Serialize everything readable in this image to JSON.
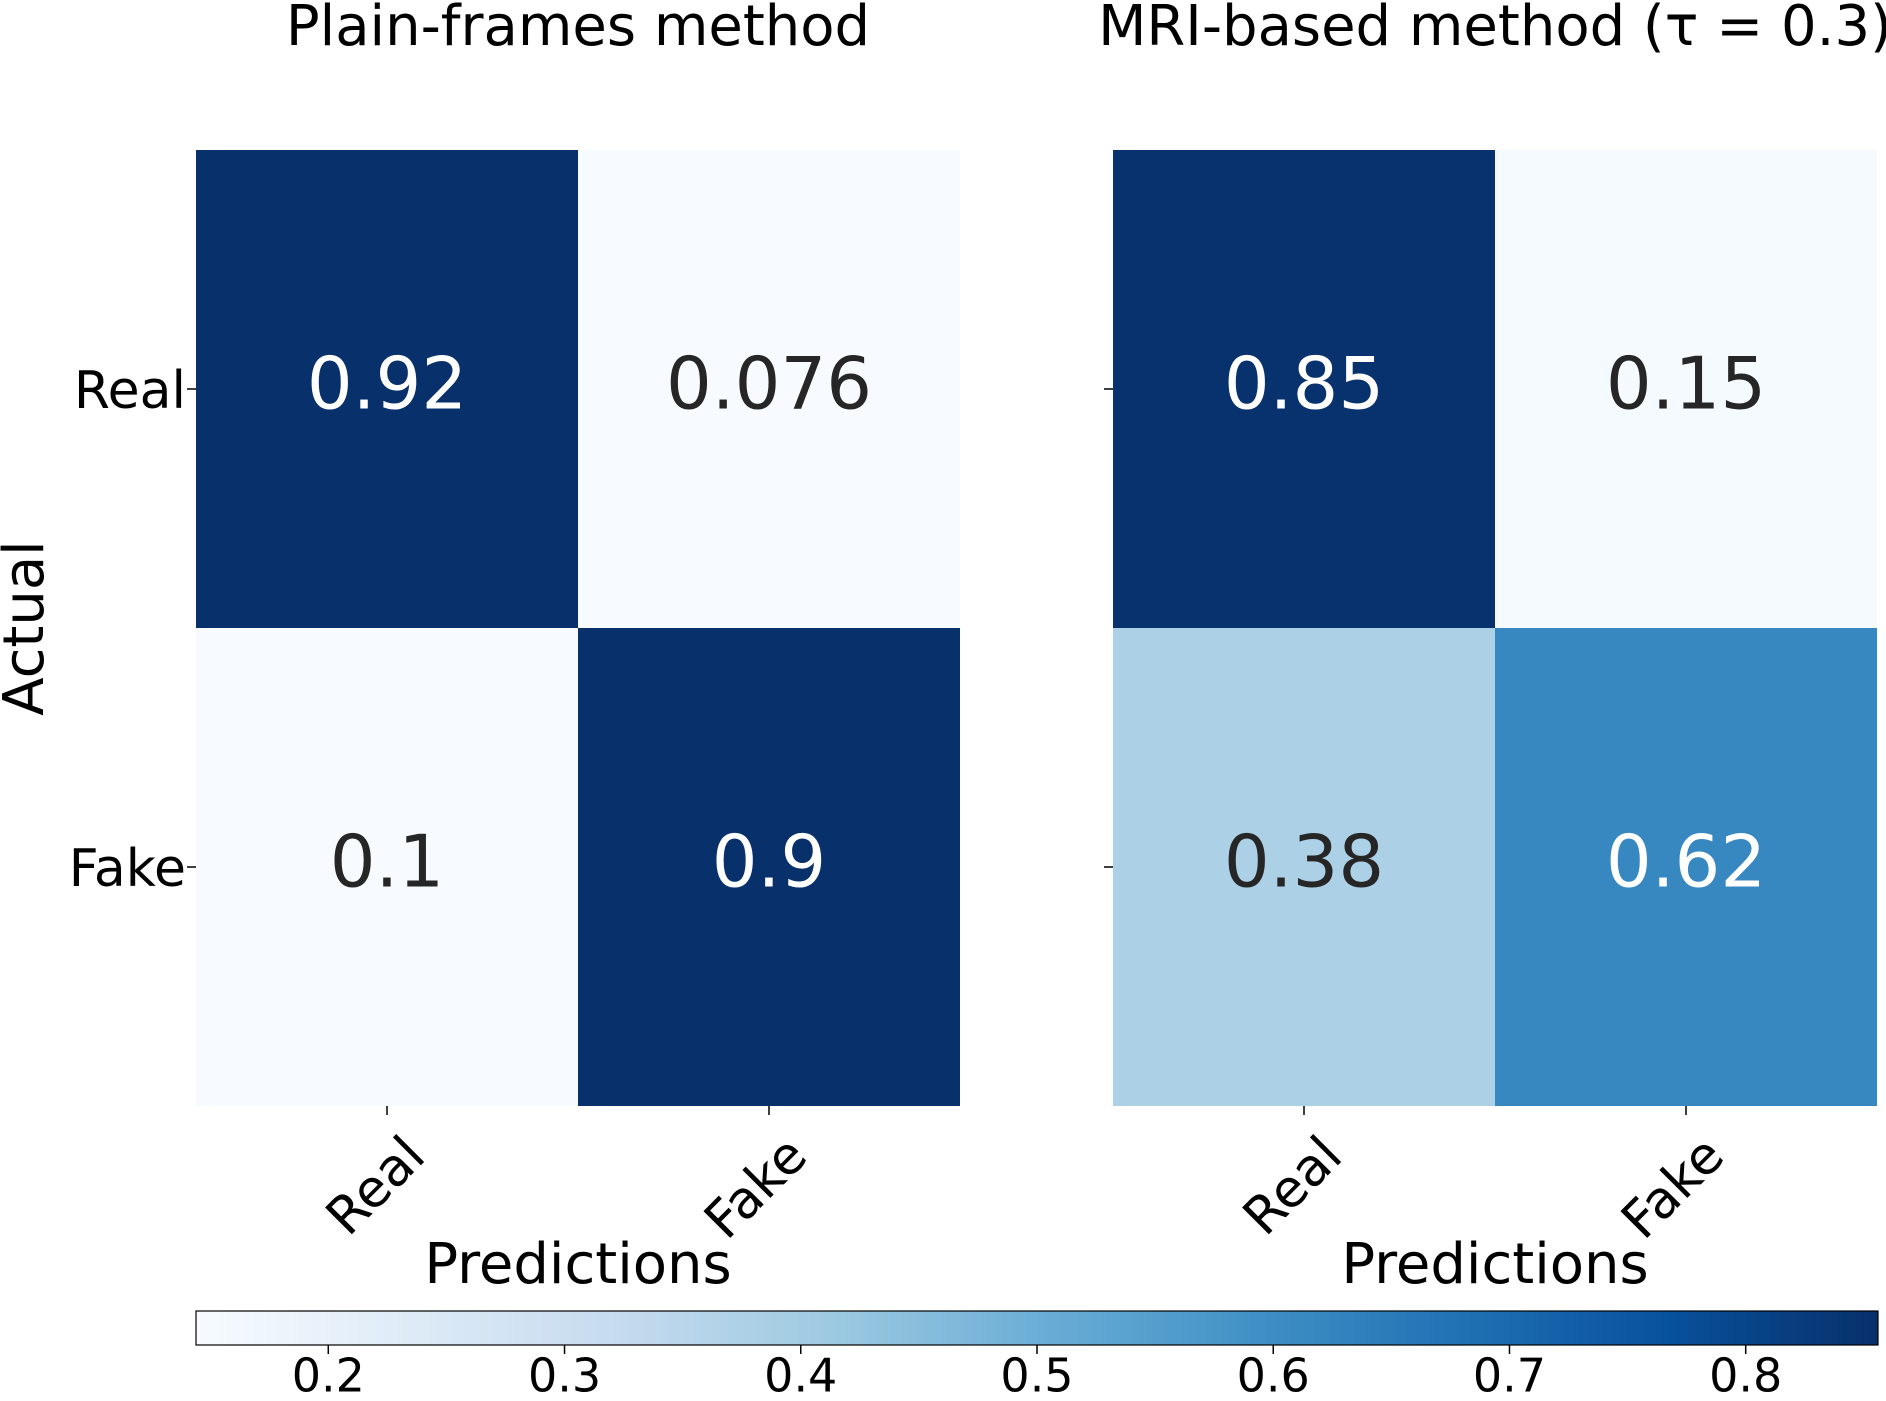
{
  "chart_data": {
    "type": "heatmap",
    "panels": [
      {
        "title": "Plain-frames method",
        "xlabel": "Predictions",
        "ylabel": "Actual",
        "x_categories": [
          "Real",
          "Fake"
        ],
        "y_categories": [
          "Real",
          "Fake"
        ],
        "values": [
          [
            0.92,
            0.076
          ],
          [
            0.1,
            0.9
          ]
        ],
        "cell_labels": [
          [
            "0.92",
            "0.076"
          ],
          [
            "0.1",
            "0.9"
          ]
        ]
      },
      {
        "title": "MRI-based method (τ = 0.3)",
        "xlabel": "Predictions",
        "ylabel": "",
        "x_categories": [
          "Real",
          "Fake"
        ],
        "y_categories": [
          "",
          ""
        ],
        "values": [
          [
            0.85,
            0.15
          ],
          [
            0.38,
            0.62
          ]
        ],
        "cell_labels": [
          [
            "0.85",
            "0.15"
          ],
          [
            "0.38",
            "0.62"
          ]
        ]
      }
    ],
    "colorbar": {
      "colormap": "Blues",
      "orientation": "horizontal",
      "range": [
        0.144,
        0.856
      ],
      "ticks": [
        0.2,
        0.3,
        0.4,
        0.5,
        0.6,
        0.7,
        0.8
      ],
      "tick_labels": [
        "0.2",
        "0.3",
        "0.4",
        "0.5",
        "0.6",
        "0.7",
        "0.8"
      ]
    },
    "colors": {
      "text_dark": "#262626",
      "text_light": "#ffffff",
      "axis": "#000000"
    }
  }
}
